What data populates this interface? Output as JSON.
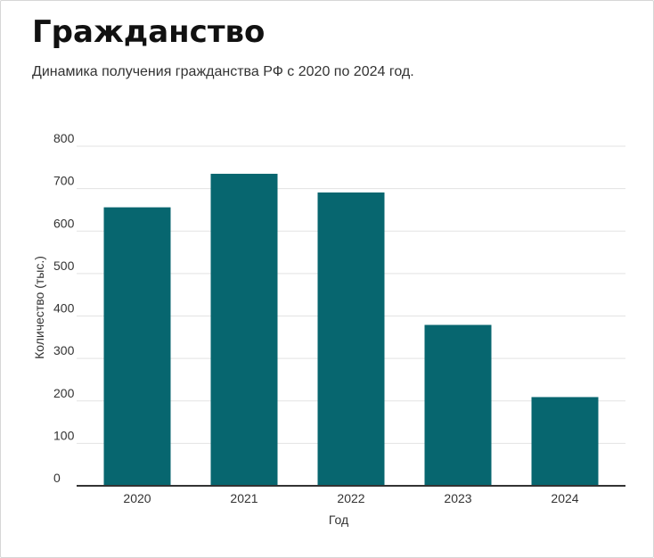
{
  "header": {
    "title": "Гражданство",
    "subtitle": "Динамика получения гражданства РФ с 2020 по 2024 год."
  },
  "colors": {
    "bar": "#07666f",
    "grid": "#e3e3e3",
    "axis": "#333333"
  },
  "chart_data": {
    "type": "bar",
    "title": "Гражданство",
    "subtitle": "Динамика получения гражданства РФ с 2020 по 2024 год.",
    "xlabel": "Год",
    "ylabel": "Количество (тыс.)",
    "categories": [
      "2020",
      "2021",
      "2022",
      "2023",
      "2024"
    ],
    "values": [
      656,
      735,
      691,
      379,
      209
    ],
    "ylim": [
      0,
      800
    ],
    "yticks": [
      "0",
      "100",
      "200",
      "300",
      "400",
      "500",
      "600",
      "700",
      "800"
    ],
    "grid": true,
    "legend": "none"
  }
}
